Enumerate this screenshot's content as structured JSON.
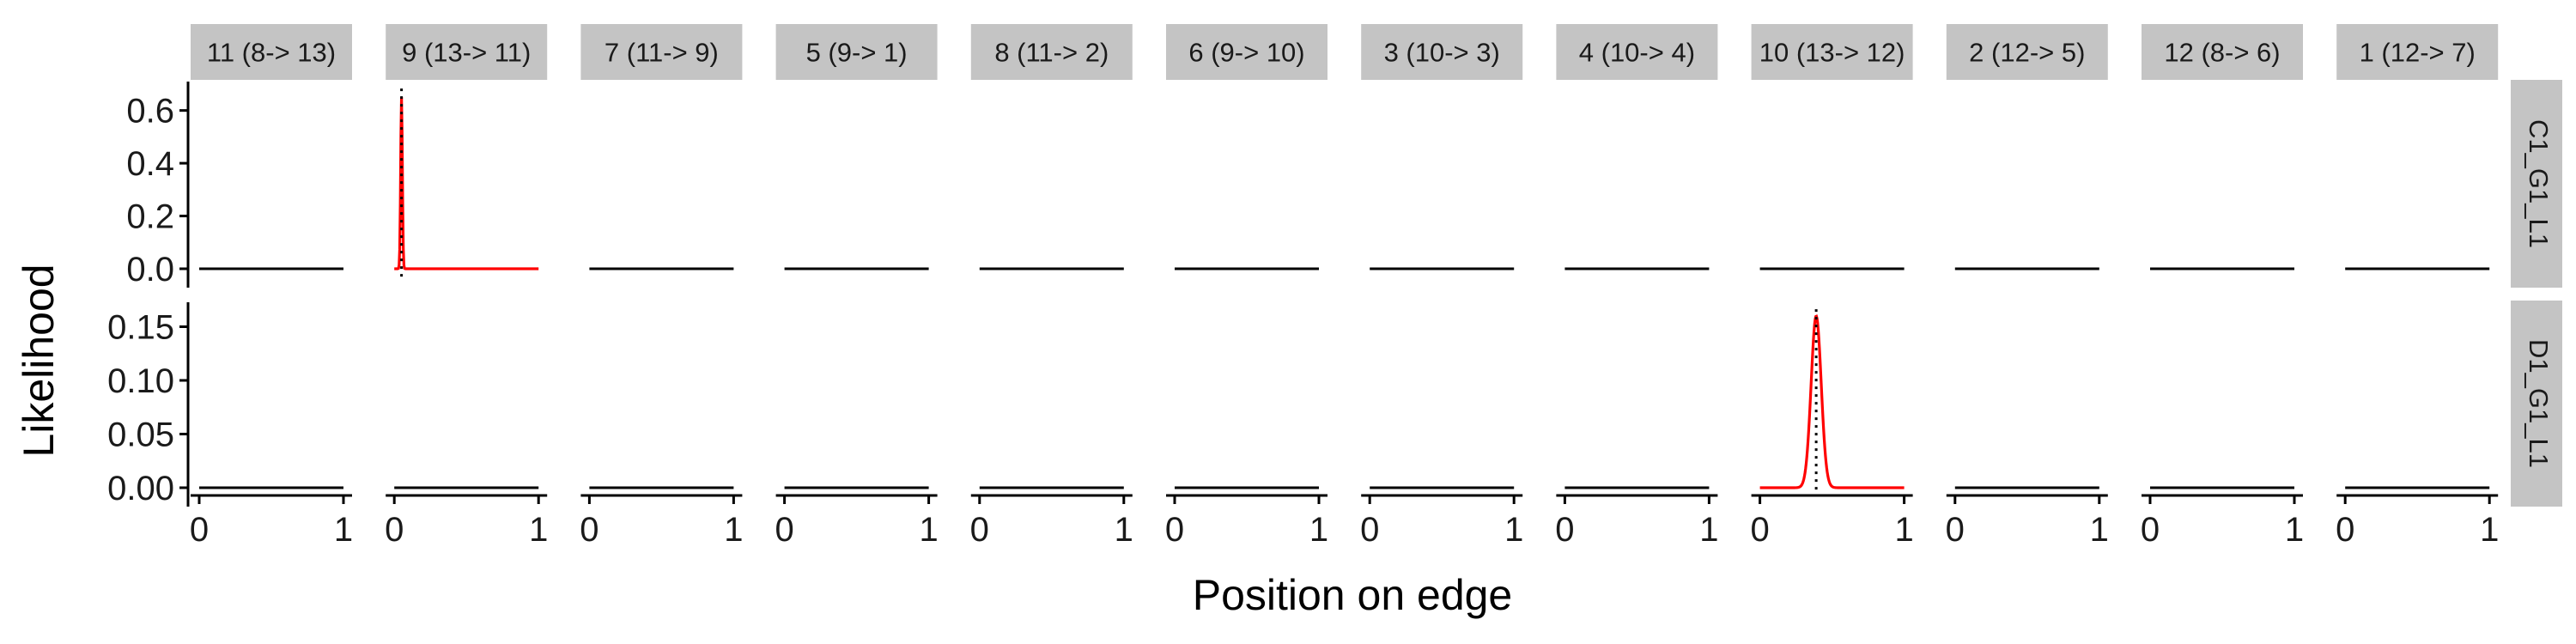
{
  "chart_data": {
    "type": "line",
    "title": "",
    "xlabel": "Position on edge",
    "ylabel": "Likelihood",
    "x_ticks": [
      "0",
      "1"
    ],
    "xlim": [
      0,
      1
    ],
    "grid": false,
    "legend": "none",
    "colors": {
      "density_line": "#ff0000",
      "baseline": "#000000",
      "strip_fill": "#c4c4c4",
      "marker_line": "#000000"
    },
    "columns": [
      "11 (8-> 13)",
      "9 (13-> 11)",
      "7 (11-> 9)",
      "5 (9-> 1)",
      "8 (11-> 2)",
      "6 (9-> 10)",
      "3 (10-> 3)",
      "4 (10-> 4)",
      "10 (13-> 12)",
      "2 (12-> 5)",
      "12 (8-> 6)",
      "1 (12-> 7)"
    ],
    "rows": [
      {
        "label": "C1_G1_L1",
        "ylim": [
          0,
          0.69
        ],
        "y_ticks": [
          {
            "value": 0.0,
            "label": "0.0"
          },
          {
            "value": 0.2,
            "label": "0.2"
          },
          {
            "value": 0.4,
            "label": "0.4"
          },
          {
            "value": 0.6,
            "label": "0.6"
          }
        ],
        "peak": {
          "column": 1,
          "position": 0.05,
          "height": 0.65,
          "sd": 0.006,
          "marker_position": 0.05
        }
      },
      {
        "label": "D1_G1_L1",
        "ylim": [
          0,
          0.168
        ],
        "y_ticks": [
          {
            "value": 0.0,
            "label": "0.00"
          },
          {
            "value": 0.05,
            "label": "0.05"
          },
          {
            "value": 0.1,
            "label": "0.10"
          },
          {
            "value": 0.15,
            "label": "0.15"
          }
        ],
        "peak": {
          "column": 8,
          "position": 0.39,
          "height": 0.16,
          "sd": 0.035,
          "marker_position": 0.39
        }
      }
    ]
  }
}
